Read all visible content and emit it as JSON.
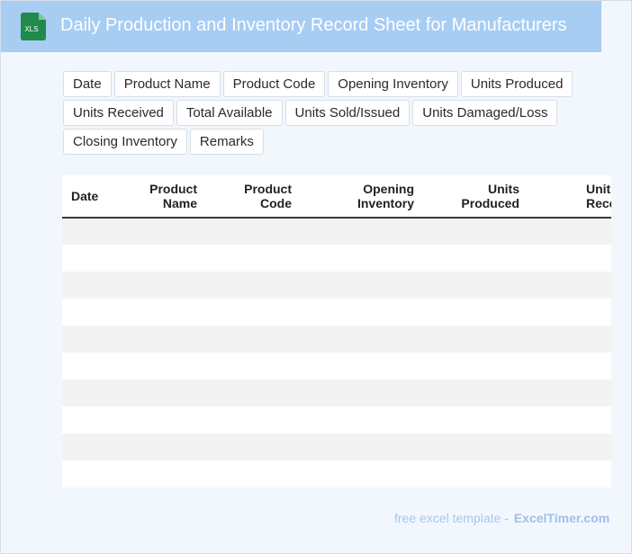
{
  "header": {
    "icon_label": "XLS",
    "icon_name": "excel-file-icon",
    "title": "Daily Production and Inventory Record Sheet for Manufacturers"
  },
  "chips": [
    "Date",
    "Product Name",
    "Product Code",
    "Opening Inventory",
    "Units Produced",
    "Units Received",
    "Total Available",
    "Units Sold/Issued",
    "Units Damaged/Loss",
    "Closing Inventory",
    "Remarks"
  ],
  "table": {
    "columns": [
      [
        "Date",
        ""
      ],
      [
        "Product",
        "Name"
      ],
      [
        "Product",
        "Code"
      ],
      [
        "Opening",
        "Inventory"
      ],
      [
        "Units",
        "Produced"
      ],
      [
        "Units",
        "Received"
      ]
    ],
    "row_count": 10
  },
  "footer": {
    "text": "free excel template -",
    "brand": "ExcelTimer.com"
  },
  "colors": {
    "header_bg": "#a7cdf3",
    "page_bg": "#f2f7fe",
    "icon_green": "#1f8a4c",
    "row_shade": "#f3f3f3"
  }
}
